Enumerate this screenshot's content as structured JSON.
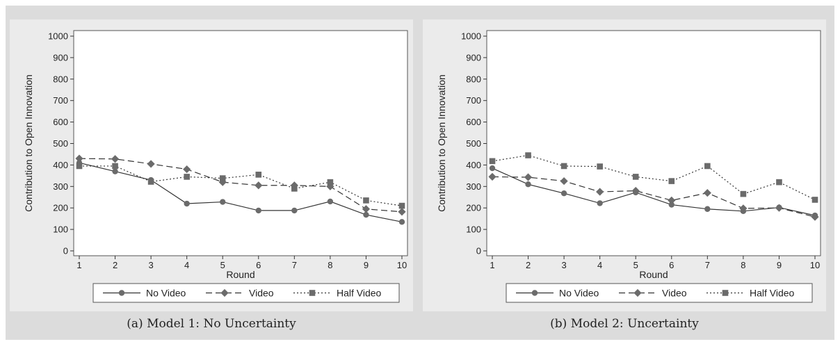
{
  "chart_data": [
    {
      "type": "line",
      "caption": "(a) Model 1: No Uncertainty",
      "xlabel": "Round",
      "ylabel": "Contribution to Open Innovation",
      "x": [
        1,
        2,
        3,
        4,
        5,
        6,
        7,
        8,
        9,
        10
      ],
      "xlim": [
        1,
        10
      ],
      "ylim": [
        0,
        1000
      ],
      "yticks": [
        0,
        100,
        200,
        300,
        400,
        500,
        600,
        700,
        800,
        900,
        1000
      ],
      "grid": false,
      "legend_position": "bottom",
      "series": [
        {
          "name": "No Video",
          "marker": "circle",
          "dash": "solid",
          "values": [
            410,
            370,
            330,
            220,
            228,
            188,
            188,
            230,
            168,
            135
          ]
        },
        {
          "name": "Video",
          "marker": "diamond",
          "dash": "dashed",
          "values": [
            430,
            428,
            405,
            380,
            320,
            305,
            305,
            300,
            195,
            182
          ]
        },
        {
          "name": "Half Video",
          "marker": "square",
          "dash": "dotted",
          "values": [
            395,
            395,
            322,
            345,
            338,
            355,
            290,
            320,
            235,
            210
          ]
        }
      ]
    },
    {
      "type": "line",
      "caption": "(b) Model 2: Uncertainty",
      "xlabel": "Round",
      "ylabel": "Contribution to Open Innovation",
      "x": [
        1,
        2,
        3,
        4,
        5,
        6,
        7,
        8,
        9,
        10
      ],
      "xlim": [
        1,
        10
      ],
      "ylim": [
        0,
        1000
      ],
      "yticks": [
        0,
        100,
        200,
        300,
        400,
        500,
        600,
        700,
        800,
        900,
        1000
      ],
      "grid": false,
      "legend_position": "bottom",
      "series": [
        {
          "name": "No Video",
          "marker": "circle",
          "dash": "solid",
          "values": [
            385,
            310,
            268,
            222,
            272,
            215,
            195,
            185,
            202,
            165
          ]
        },
        {
          "name": "Video",
          "marker": "diamond",
          "dash": "dashed",
          "values": [
            345,
            343,
            325,
            275,
            280,
            235,
            270,
            198,
            200,
            158
          ]
        },
        {
          "name": "Half Video",
          "marker": "square",
          "dash": "dotted",
          "values": [
            418,
            445,
            395,
            393,
            345,
            325,
            395,
            265,
            320,
            238
          ]
        }
      ]
    }
  ],
  "colors": {
    "line": "#333333",
    "marker": "#6b6b6b",
    "panel_bg": "#ebebeb",
    "plot_bg": "#ffffff"
  }
}
